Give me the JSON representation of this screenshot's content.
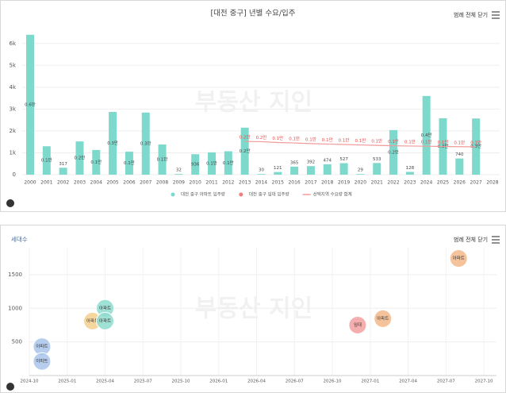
{
  "ui": {
    "legend_toggle": "범례 전체 닫기"
  },
  "chart_data": [
    {
      "type": "bar",
      "title": "[대전 중구] 년별 수요/입주",
      "watermark": "부동산 지인",
      "categories": [
        "2000",
        "2001",
        "2002",
        "2003",
        "2004",
        "2005",
        "2006",
        "2007",
        "2008",
        "2009",
        "2010",
        "2011",
        "2012",
        "2013",
        "2014",
        "2015",
        "2016",
        "2017",
        "2018",
        "2019",
        "2020",
        "2021",
        "2022",
        "2023",
        "2024",
        "2025",
        "2026",
        "2027",
        "2028"
      ],
      "series": [
        {
          "name": "대전 중구 아파트 입주량",
          "color": "#7dd9cc",
          "values": [
            6400,
            1300,
            317,
            1520,
            1130,
            2870,
            1050,
            2840,
            1380,
            32,
            936,
            1020,
            1070,
            2150,
            30,
            121,
            365,
            392,
            474,
            527,
            29,
            533,
            2040,
            128,
            3600,
            2580,
            740,
            2570,
            null
          ],
          "value_labels": [
            "0.6만",
            "0.1만",
            "317",
            "0.2만",
            "0.1만",
            "0.3만",
            "0.1만",
            "0.3만",
            "0.1만",
            "32",
            "936",
            "0.1만",
            "0.1만",
            "0.2만",
            "30",
            "121",
            "365",
            "392",
            "474",
            "527",
            "29",
            "533",
            "0.2만",
            "128",
            "0.4만",
            "0.3만",
            "740",
            "0.3만",
            null
          ]
        },
        {
          "name": "대전 중구 임대 입주량",
          "color": "#f07c7c",
          "values": [
            null,
            null,
            null,
            null,
            null,
            null,
            null,
            null,
            null,
            null,
            null,
            null,
            null,
            null,
            null,
            null,
            null,
            null,
            null,
            null,
            null,
            null,
            null,
            null,
            null,
            null,
            null,
            null,
            null
          ]
        },
        {
          "name": "선택지역 수요량 합계",
          "color": "#f29a9a",
          "type": "line",
          "values": [
            null,
            null,
            null,
            null,
            null,
            null,
            null,
            null,
            null,
            null,
            null,
            null,
            null,
            1520,
            1510,
            1470,
            1450,
            1420,
            1400,
            1380,
            1360,
            1340,
            1320,
            1310,
            1300,
            1290,
            1280,
            1270,
            null
          ],
          "value_labels": [
            null,
            null,
            null,
            null,
            null,
            null,
            null,
            null,
            null,
            null,
            null,
            null,
            null,
            "0.2만",
            "0.2만",
            "0.1만",
            "0.1만",
            "0.1만",
            "0.1만",
            "0.1만",
            "0.1만",
            "0.1만",
            "0.1만",
            "0.1만",
            "0.1만",
            "0.1만",
            "0.1만",
            "0.1만",
            null
          ]
        }
      ],
      "ylim": [
        0,
        6500
      ],
      "yticks": [
        0,
        {
          "value": 1000,
          "label": "1k"
        },
        {
          "value": 2000,
          "label": "2k"
        },
        {
          "value": 3000,
          "label": "3k"
        },
        {
          "value": 4000,
          "label": "4k"
        },
        {
          "value": 5000,
          "label": "5k"
        },
        {
          "value": 6000,
          "label": "6k"
        }
      ],
      "grid": true
    },
    {
      "type": "scatter",
      "y_label": "세대수",
      "watermark": "부동산 지인",
      "x": [
        "2024-11",
        "2024-11",
        "2025-03",
        "2025-04",
        "2025-04",
        "2026-12",
        "2027-02",
        "2027-08"
      ],
      "values": [
        430,
        210,
        810,
        1000,
        810,
        750,
        845,
        1740
      ],
      "colors": [
        "#a9c4ea",
        "#a9c4ea",
        "#f5cf8e",
        "#8fdccf",
        "#8fdccf",
        "#f2a0a0",
        "#f2b98a",
        "#f2b98a"
      ],
      "point_labels": [
        "아파트",
        "아파트",
        "아파트",
        "아파트",
        "아파트",
        "임대",
        "아파트",
        "아파트"
      ],
      "xlim": [
        "2024-10",
        "2027-11"
      ],
      "xticks": [
        "2024-10",
        "2025-01",
        "2025-04",
        "2025-07",
        "2025-10",
        "2026-01",
        "2026-04",
        "2026-07",
        "2026-10",
        "2027-01",
        "2027-04",
        "2027-07",
        "2027-10"
      ],
      "ylim": [
        0,
        1900
      ],
      "yticks": [
        500,
        1000,
        1500
      ],
      "grid": true
    }
  ]
}
